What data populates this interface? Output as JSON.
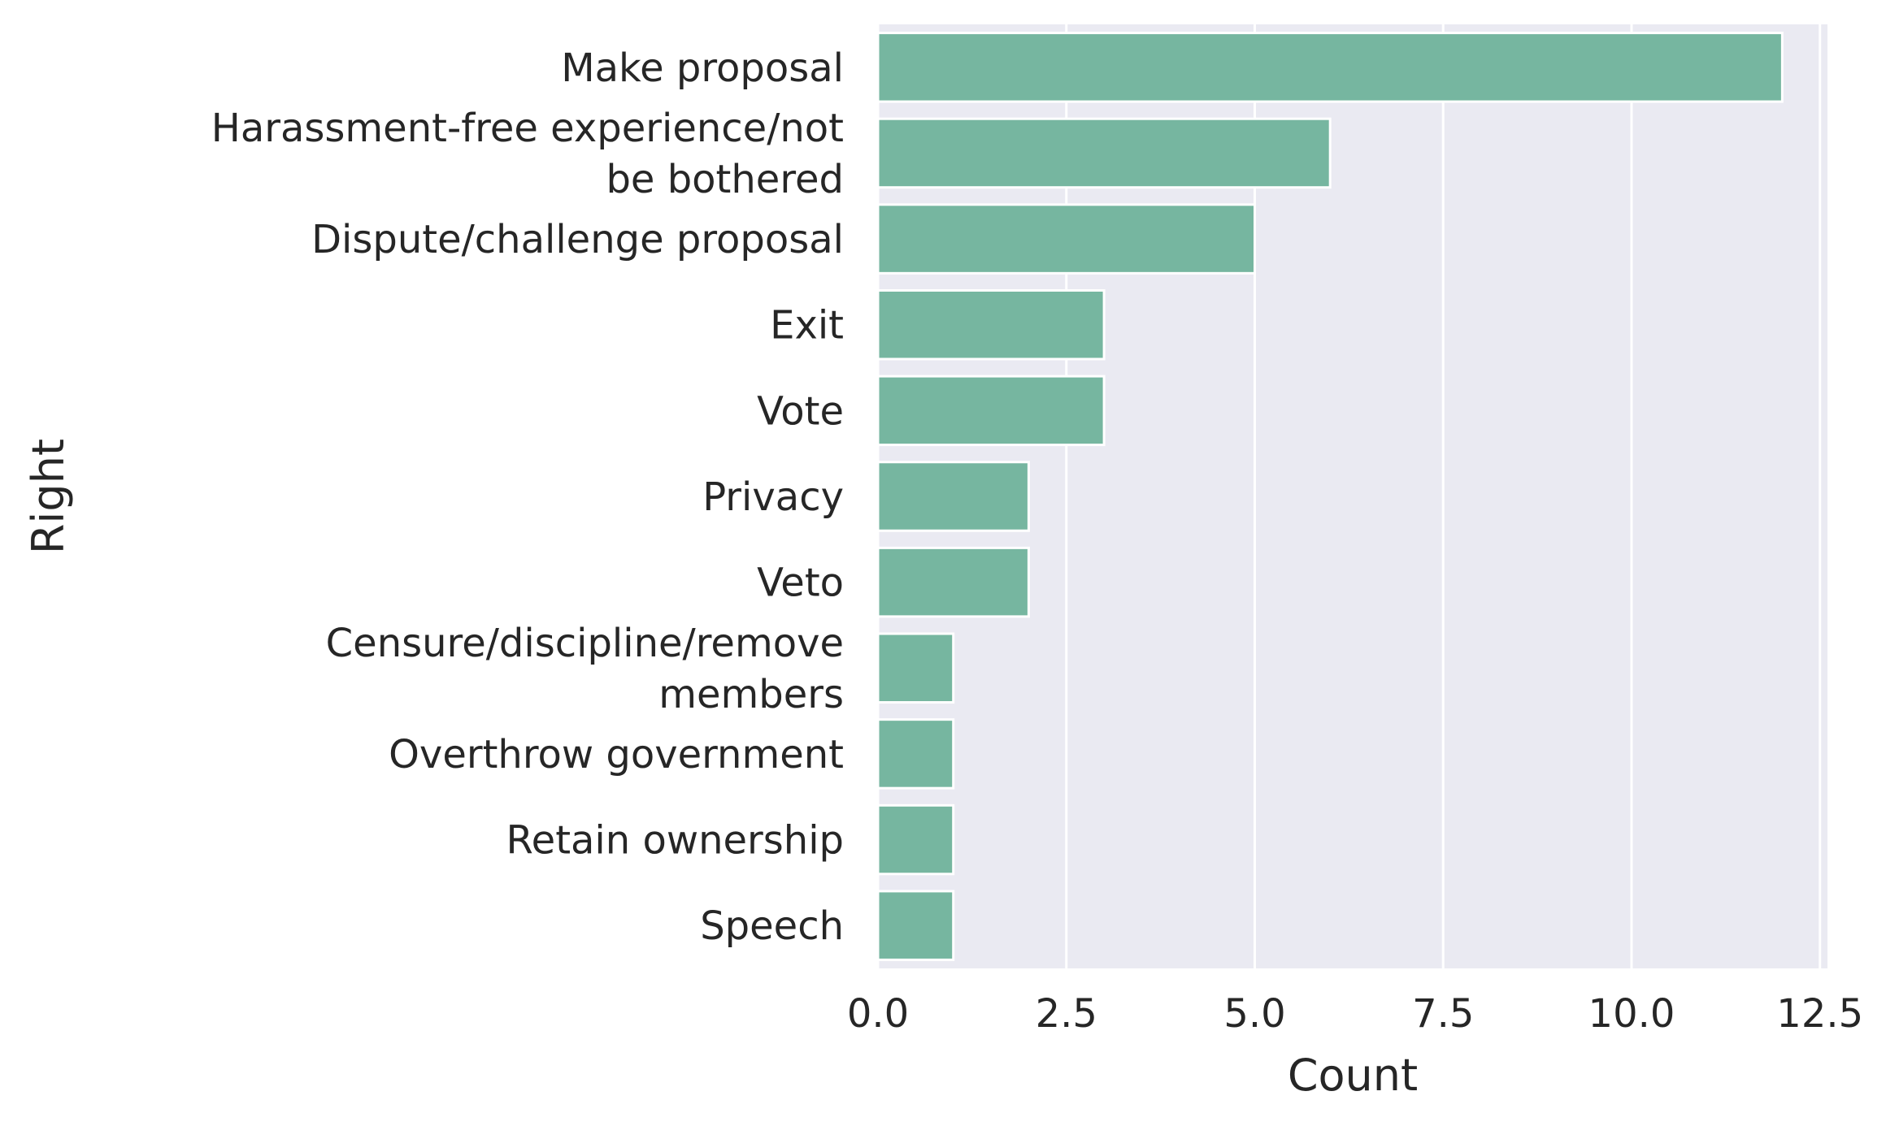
{
  "chart_data": {
    "type": "bar",
    "orientation": "horizontal",
    "categories": [
      [
        "Make proposal"
      ],
      [
        "Harassment-free experience/not",
        "be bothered"
      ],
      [
        "Dispute/challenge proposal"
      ],
      [
        "Exit"
      ],
      [
        "Vote"
      ],
      [
        "Privacy"
      ],
      [
        "Veto"
      ],
      [
        "Censure/discipline/remove",
        "members"
      ],
      [
        "Overthrow government"
      ],
      [
        "Retain ownership"
      ],
      [
        "Speech"
      ]
    ],
    "values": [
      12,
      6,
      5,
      3,
      3,
      2,
      2,
      1,
      1,
      1,
      1
    ],
    "xlabel": "Count",
    "ylabel": "Right",
    "xlim": [
      0,
      12.6
    ],
    "xticks": [
      "0.0",
      "2.5",
      "5.0",
      "7.5",
      "10.0",
      "12.5"
    ],
    "xtick_values": [
      0,
      2.5,
      5,
      7.5,
      10,
      12.5
    ],
    "grid": true,
    "colors": {
      "bar": "#76b6a0",
      "bar_edge": "#ffffff",
      "plot_background": "#eaeaf2",
      "grid": "#ffffff",
      "text": "#262626"
    }
  }
}
